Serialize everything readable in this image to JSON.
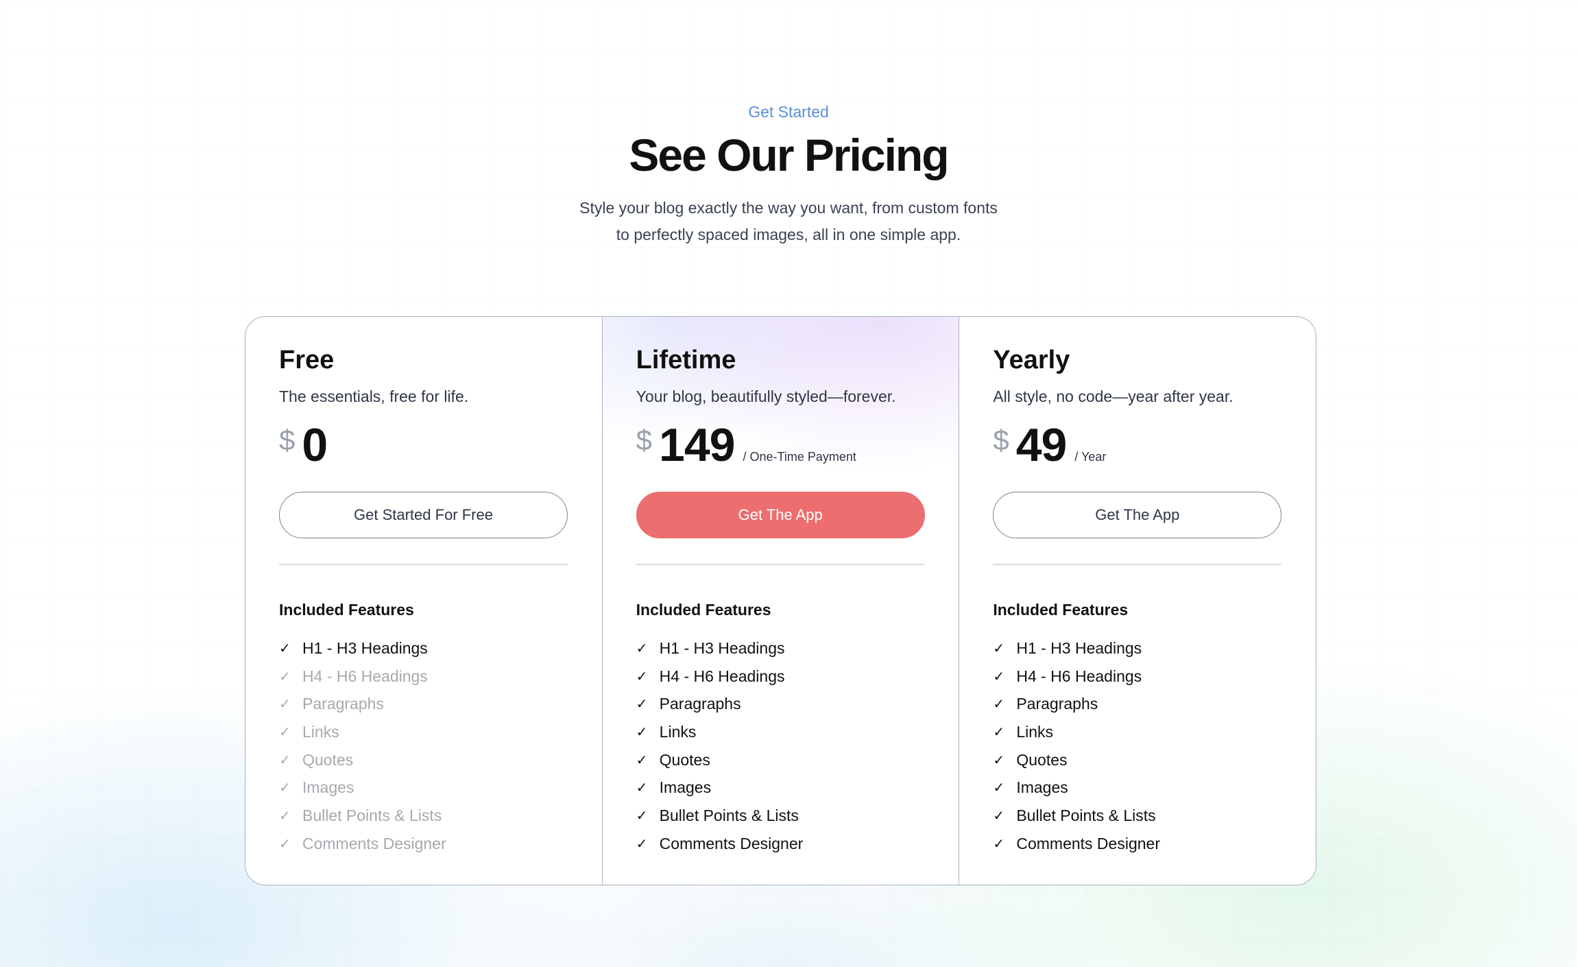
{
  "header": {
    "eyebrow": "Get Started",
    "title": "See Our Pricing",
    "subtitle_line1": "Style your blog exactly the way you want, from custom fonts",
    "subtitle_line2": "to perfectly spaced images, all in one simple app."
  },
  "colors": {
    "accent": "#5b8fd6",
    "cta": "#ec6e6e",
    "disabled": "#a6a9ae"
  },
  "plans": [
    {
      "name": "Free",
      "desc": "The essentials, free for life.",
      "currency": "$",
      "amount": "0",
      "period": "",
      "button": "Get Started For Free",
      "features_heading": "Included Features",
      "features": [
        {
          "label": "H1 - H3 Headings",
          "included": true
        },
        {
          "label": "H4 - H6 Headings",
          "included": false
        },
        {
          "label": "Paragraphs",
          "included": false
        },
        {
          "label": "Links",
          "included": false
        },
        {
          "label": "Quotes",
          "included": false
        },
        {
          "label": "Images",
          "included": false
        },
        {
          "label": "Bullet Points & Lists",
          "included": false
        },
        {
          "label": "Comments Designer",
          "included": false
        }
      ]
    },
    {
      "name": "Lifetime",
      "desc": "Your blog, beautifully styled—forever.",
      "currency": "$",
      "amount": "149",
      "period": "/ One-Time Payment",
      "button": "Get The App",
      "features_heading": "Included Features",
      "features": [
        {
          "label": "H1 - H3 Headings",
          "included": true
        },
        {
          "label": "H4 - H6 Headings",
          "included": true
        },
        {
          "label": "Paragraphs",
          "included": true
        },
        {
          "label": "Links",
          "included": true
        },
        {
          "label": "Quotes",
          "included": true
        },
        {
          "label": "Images",
          "included": true
        },
        {
          "label": "Bullet Points & Lists",
          "included": true
        },
        {
          "label": "Comments Designer",
          "included": true
        }
      ]
    },
    {
      "name": "Yearly",
      "desc": "All style, no code—year after year.",
      "currency": "$",
      "amount": "49",
      "period": "/ Year",
      "button": "Get The App",
      "features_heading": "Included Features",
      "features": [
        {
          "label": "H1 - H3 Headings",
          "included": true
        },
        {
          "label": "H4 - H6 Headings",
          "included": true
        },
        {
          "label": "Paragraphs",
          "included": true
        },
        {
          "label": "Links",
          "included": true
        },
        {
          "label": "Quotes",
          "included": true
        },
        {
          "label": "Images",
          "included": true
        },
        {
          "label": "Bullet Points & Lists",
          "included": true
        },
        {
          "label": "Comments Designer",
          "included": true
        }
      ]
    }
  ]
}
